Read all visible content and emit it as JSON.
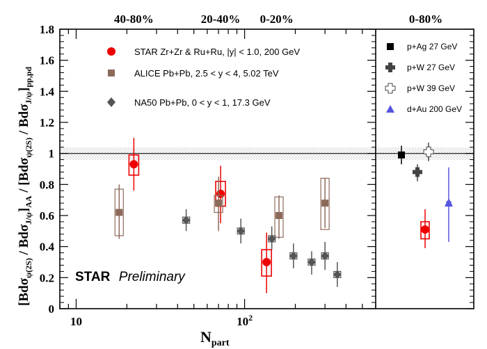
{
  "chart_data": {
    "type": "scatter",
    "xlabel_main": "N",
    "xlabel_sub": "part",
    "ylabel": "[Bdσψ(2S) / BdσJ/ψ]AA / [Bdσψ(2S) / BdσJ/ψ]pp,pd",
    "ylabel_parts": {
      "open1": "[Bdσ",
      "sub1": "ψ(2S)",
      "mid1": " / Bdσ",
      "sub2": "J/ψ",
      "close1": "]",
      "sub3": "AA",
      "slash": " / ",
      "open2": "[Bdσ",
      "sub4": "ψ(2S)",
      "mid2": " / Bdσ",
      "sub5": "J/ψ",
      "close2": "]",
      "sub6": "pp,pd"
    },
    "x_scale": "log",
    "xlim": [
      8,
      600
    ],
    "ylim": [
      0,
      1.8
    ],
    "x_tick_labels": [
      {
        "value": 10,
        "label": "10"
      },
      {
        "value": 100,
        "label": "10",
        "exponent": "2"
      }
    ],
    "y_tick_labels": [
      "0",
      "0.2",
      "0.4",
      "0.6",
      "0.8",
      "1",
      "1.2",
      "1.4",
      "1.6",
      "1.8"
    ],
    "reference_line": {
      "y": 1.0,
      "band": [
        0.96,
        1.04
      ]
    },
    "centrality_labels": [
      {
        "text": "40-80%",
        "x": 22
      },
      {
        "text": "20-40%",
        "x": 72
      },
      {
        "text": "0-20%",
        "x": 155
      }
    ],
    "right_panel_label": "0-80%",
    "star_label": {
      "bold": "STAR",
      "italic": "Preliminary"
    },
    "legend_main": [
      {
        "label": "STAR Zr+Zr & Ru+Ru, |y| < 1.0, 200 GeV",
        "marker": "circle",
        "color": "#ee0000"
      },
      {
        "label": "ALICE Pb+Pb, 2.5 < y < 4, 5.02 TeV",
        "marker": "square",
        "color": "#8c6a5a"
      },
      {
        "label": "NA50 Pb+Pb, 0 < y < 1, 17.3 GeV",
        "marker": "diamond",
        "color": "#555555"
      }
    ],
    "legend_right": [
      {
        "label": "p+Ag 27 GeV",
        "marker": "square",
        "color": "#000000"
      },
      {
        "label": "p+W 27 GeV",
        "marker": "cross",
        "color": "#444444"
      },
      {
        "label": "p+W 39 GeV",
        "marker": "open-cross",
        "color": "#444444"
      },
      {
        "label": "d+Au 200 GeV",
        "marker": "triangle",
        "color": "#5555dd"
      }
    ],
    "series": [
      {
        "name": "STAR Zr+Zr & Ru+Ru",
        "color": "#ee0000",
        "marker": "circle",
        "points": [
          {
            "x": 22,
            "y": 0.93,
            "stat": [
              0.76,
              1.1
            ],
            "sys": [
              0.86,
              0.99
            ]
          },
          {
            "x": 72,
            "y": 0.74,
            "stat": [
              0.55,
              0.92
            ],
            "sys": [
              0.66,
              0.82
            ]
          },
          {
            "x": 135,
            "y": 0.3,
            "stat": [
              0.1,
              0.49
            ],
            "sys": [
              0.21,
              0.38
            ]
          }
        ]
      },
      {
        "name": "ALICE Pb+Pb",
        "color": "#8c6a5a",
        "marker": "square",
        "points": [
          {
            "x": 18,
            "y": 0.62,
            "stat": [
              0.45,
              0.8
            ],
            "sys": [
              0.47,
              0.77
            ]
          },
          {
            "x": 70,
            "y": 0.68,
            "stat": [
              0.5,
              0.85
            ],
            "sys": [
              0.62,
              0.73
            ]
          },
          {
            "x": 160,
            "y": 0.6,
            "stat": [
              0.45,
              0.73
            ],
            "sys": [
              0.46,
              0.72
            ]
          },
          {
            "x": 300,
            "y": 0.68,
            "stat": [
              0.52,
              0.84
            ],
            "sys": [
              0.51,
              0.84
            ]
          }
        ]
      },
      {
        "name": "NA50 Pb+Pb",
        "color": "#555555",
        "marker": "diamond",
        "points": [
          {
            "x": 45,
            "y": 0.57,
            "stat": [
              0.5,
              0.64
            ],
            "sys": [
              0.55,
              0.59
            ]
          },
          {
            "x": 95,
            "y": 0.5,
            "stat": [
              0.42,
              0.58
            ],
            "sys": [
              0.48,
              0.52
            ]
          },
          {
            "x": 145,
            "y": 0.45,
            "stat": [
              0.38,
              0.53
            ],
            "sys": [
              0.43,
              0.47
            ]
          },
          {
            "x": 195,
            "y": 0.34,
            "stat": [
              0.26,
              0.42
            ],
            "sys": [
              0.32,
              0.36
            ]
          },
          {
            "x": 250,
            "y": 0.3,
            "stat": [
              0.22,
              0.37
            ],
            "sys": [
              0.28,
              0.32
            ]
          },
          {
            "x": 300,
            "y": 0.34,
            "stat": [
              0.25,
              0.43
            ],
            "sys": [
              0.32,
              0.36
            ]
          },
          {
            "x": 355,
            "y": 0.22,
            "stat": [
              0.14,
              0.3
            ],
            "sys": [
              0.2,
              0.24
            ]
          }
        ]
      }
    ],
    "right_panel_points": [
      {
        "label": "p+Ag 27 GeV",
        "y": 0.99,
        "stat": [
          0.93,
          1.05
        ],
        "sys": [
          0.98,
          1.0
        ]
      },
      {
        "label": "p+W 27 GeV",
        "y": 0.88,
        "stat": [
          0.82,
          0.93
        ],
        "sys": [
          0.87,
          0.89
        ]
      },
      {
        "label": "p+W 39 GeV",
        "y": 1.01,
        "stat": [
          0.95,
          1.07
        ],
        "sys": [
          1.0,
          1.02
        ]
      },
      {
        "label": "STAR 0-80%",
        "y": 0.51,
        "stat": [
          0.39,
          0.64
        ],
        "sys": [
          0.45,
          0.56
        ]
      },
      {
        "label": "d+Au 200 GeV",
        "y": 0.68,
        "stat": [
          0.43,
          0.91
        ],
        "sys": [
          0.67,
          0.69
        ]
      }
    ]
  }
}
